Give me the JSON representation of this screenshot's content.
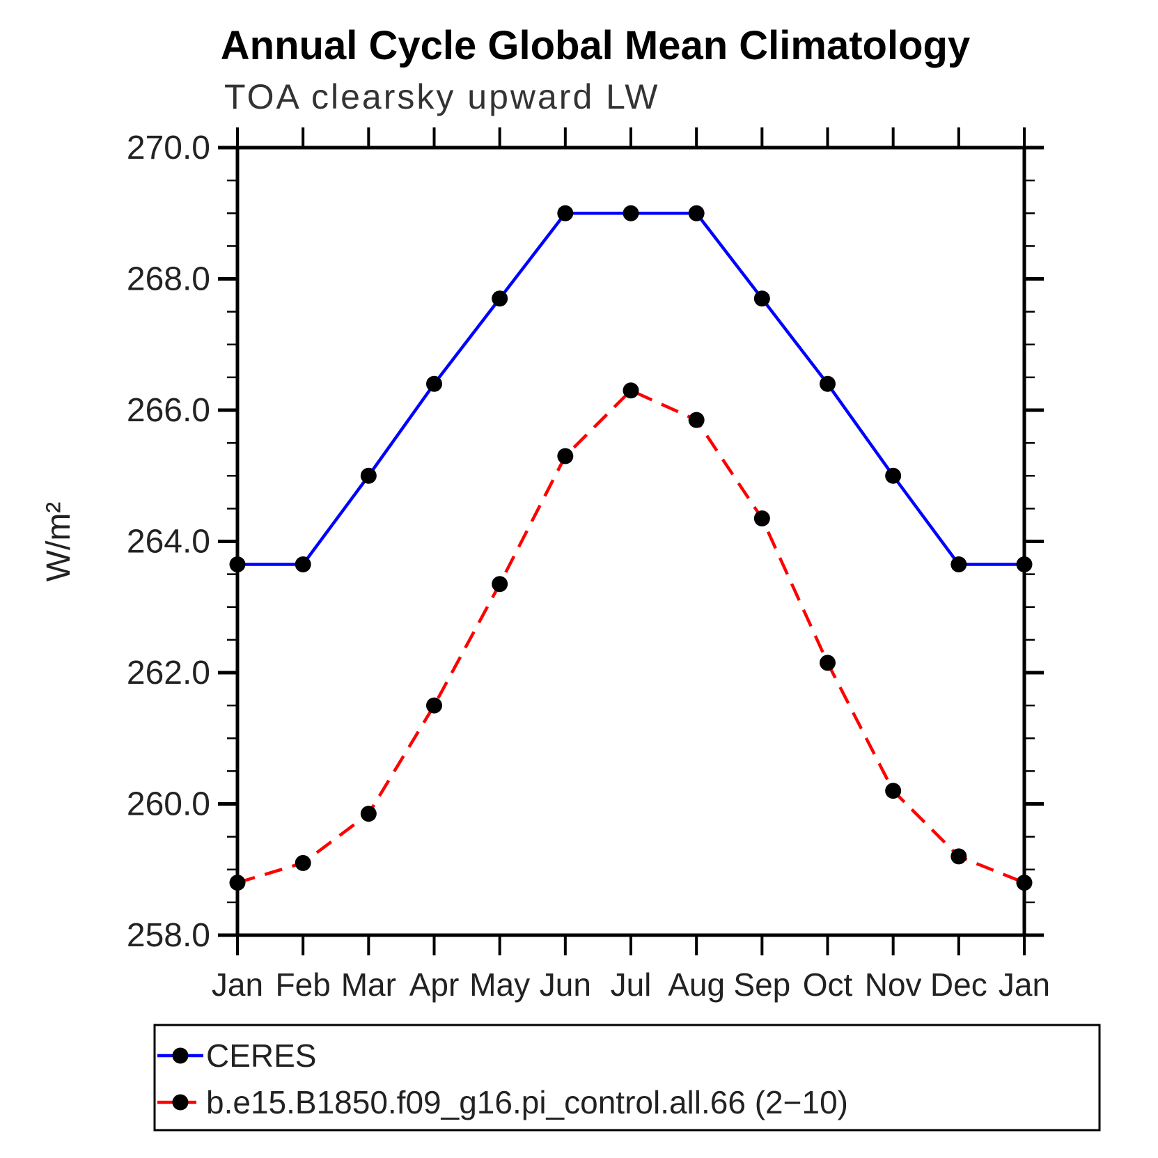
{
  "title": "Annual Cycle Global Mean Climatology",
  "chart_data": {
    "type": "line",
    "title": "Annual Cycle Global Mean Climatology",
    "subtitle": "TOA clearsky upward LW",
    "ylabel": "W/m²",
    "xlabel": "",
    "categories": [
      "Jan",
      "Feb",
      "Mar",
      "Apr",
      "May",
      "Jun",
      "Jul",
      "Aug",
      "Sep",
      "Oct",
      "Nov",
      "Dec",
      "Jan"
    ],
    "ylim": [
      258.0,
      270.0
    ],
    "ytick_labels": [
      "270.0",
      "268.0",
      "266.0",
      "264.0",
      "262.0",
      "260.0",
      "258.0"
    ],
    "ytick_major_interval": 2.0,
    "ytick_minor_interval": 0.5,
    "grid": false,
    "legend_position": "bottom-left",
    "axis_color": "#000000",
    "marker_color": "#000000",
    "series": [
      {
        "name": "CERES",
        "color": "#0000FF",
        "style": "solid",
        "marker": "circle",
        "values": [
          263.65,
          263.65,
          265.0,
          266.4,
          267.7,
          269.0,
          269.0,
          269.0,
          267.7,
          266.4,
          265.0,
          263.65,
          263.65
        ]
      },
      {
        "name": "b.e15.B1850.f09_g16.pi_control.all.66 (2−10)",
        "color": "#FF0000",
        "style": "dashed",
        "marker": "circle",
        "values": [
          258.8,
          259.1,
          259.85,
          261.5,
          263.35,
          265.3,
          266.3,
          265.85,
          264.35,
          262.15,
          260.2,
          259.2,
          258.8
        ]
      }
    ]
  }
}
